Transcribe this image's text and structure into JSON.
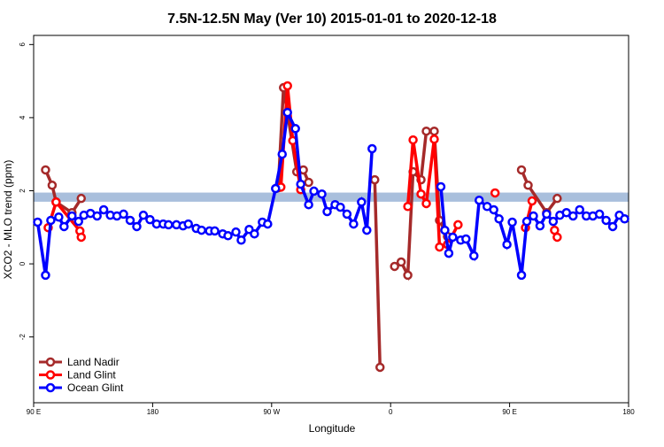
{
  "chart_data": {
    "type": "line",
    "title": "7.5N-12.5N May (Ver 10)   2015-01-01 to 2020-12-18",
    "x_label": "Longitude",
    "y_label": "XCO2 - MLO trend (ppm)",
    "xlim": [
      90,
      540
    ],
    "ylim": [
      -3.8,
      6.25
    ],
    "xticks": [
      {
        "value": 90,
        "label": "90 E"
      },
      {
        "value": 180,
        "label": "180"
      },
      {
        "value": 270,
        "label": "90 W"
      },
      {
        "value": 360,
        "label": "0"
      },
      {
        "value": 450,
        "label": "90 E"
      },
      {
        "value": 540,
        "label": "180"
      }
    ],
    "yticks": [
      -2,
      0,
      2,
      4,
      6
    ],
    "band": [
      1.7,
      1.95
    ],
    "band_color": "#a9bfdc",
    "legend": "bottom-left",
    "series": [
      {
        "name": "Land Nadir",
        "color": "#a52a2a",
        "x": [
          99,
          104,
          107,
          119,
          126,
          null,
          275,
          279,
          289,
          294,
          298,
          null,
          348,
          352,
          null,
          363,
          368,
          373,
          377,
          383,
          387,
          393,
          397,
          403,
          null,
          459,
          464,
          478,
          486
        ],
        "values": [
          2.57,
          2.15,
          1.69,
          1.4,
          1.79,
          null,
          2.08,
          4.82,
          2.52,
          2.57,
          2.23,
          null,
          2.3,
          -2.83,
          null,
          -0.07,
          0.05,
          -0.31,
          2.52,
          2.3,
          3.63,
          3.63,
          1.19,
          0.75,
          null,
          2.57,
          2.15,
          1.4,
          1.79
        ]
      },
      {
        "name": "Land Glint",
        "color": "#ff0000",
        "x": [
          101,
          107,
          125,
          126,
          null,
          277,
          282,
          286,
          292,
          null,
          373,
          377,
          383,
          387,
          393,
          397,
          403,
          411,
          null,
          439,
          null,
          462,
          467,
          null,
          484,
          486
        ],
        "values": [
          0.99,
          1.69,
          0.9,
          0.73,
          null,
          2.1,
          4.87,
          3.37,
          2.03,
          null,
          1.57,
          3.39,
          1.91,
          1.65,
          3.41,
          0.46,
          0.53,
          1.07,
          null,
          1.94,
          null,
          0.99,
          1.72,
          null,
          0.92,
          0.73
        ]
      },
      {
        "name": "Ocean Glint",
        "color": "#0000ff",
        "x": [
          93,
          99,
          103,
          109,
          113,
          119,
          124,
          128,
          133,
          138,
          143,
          148,
          153,
          158,
          163,
          168,
          173,
          178,
          183,
          188,
          192,
          198,
          203,
          207,
          213,
          217,
          223,
          227,
          233,
          237,
          243,
          247,
          253,
          257,
          263,
          267,
          273,
          278,
          282,
          288,
          292,
          298,
          302,
          308,
          312,
          318,
          322,
          327,
          332,
          338,
          342,
          346,
          null,
          398,
          401,
          404,
          407,
          413,
          417,
          423,
          427,
          433,
          438,
          442,
          448,
          452,
          459,
          463,
          468,
          473,
          478,
          483,
          488,
          493,
          498,
          503,
          508,
          513,
          518,
          523,
          528,
          533,
          537
        ],
        "values": [
          1.14,
          -0.31,
          1.19,
          1.28,
          1.02,
          1.31,
          1.16,
          1.33,
          1.38,
          1.31,
          1.48,
          1.33,
          1.31,
          1.36,
          1.19,
          1.02,
          1.33,
          1.21,
          1.09,
          1.09,
          1.07,
          1.07,
          1.04,
          1.09,
          0.97,
          0.92,
          0.9,
          0.9,
          0.82,
          0.77,
          0.87,
          0.65,
          0.94,
          0.82,
          1.14,
          1.09,
          2.06,
          3.0,
          4.14,
          3.7,
          2.18,
          1.62,
          1.99,
          1.91,
          1.43,
          1.62,
          1.55,
          1.36,
          1.09,
          1.69,
          0.92,
          3.15,
          null,
          2.11,
          0.92,
          0.29,
          0.73,
          0.65,
          0.68,
          0.22,
          1.74,
          1.57,
          1.48,
          1.23,
          0.53,
          1.14,
          -0.31,
          1.16,
          1.31,
          1.04,
          1.36,
          1.16,
          1.33,
          1.4,
          1.31,
          1.48,
          1.31,
          1.31,
          1.36,
          1.19,
          1.02,
          1.33,
          1.23
        ]
      }
    ]
  }
}
